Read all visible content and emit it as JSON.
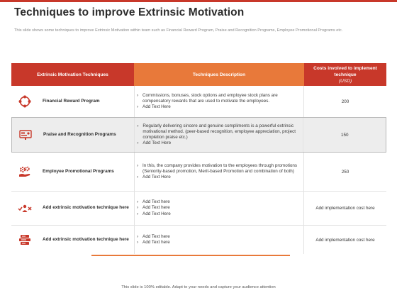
{
  "slide": {
    "title": "Techniques to improve Extrinsic Motivation",
    "subtitle": "This slide shows some techniques to improve Extrinsic Motivation within team such as Financial Reward Program, Praise and Recognition Programs, Employee Promotional Programs etc.",
    "footer": "This slide is 100% editable. Adapt to your needs and capture your audience attention"
  },
  "table": {
    "headers": {
      "technique": "Extrinsic Motivation Techniques",
      "description": "Techniques Description",
      "cost": "Costs involved to implement technique",
      "cost_unit": "(USD)"
    },
    "rows": [
      {
        "icon": "cycle-arrows-icon",
        "name": "Financial Reward Program",
        "bullets": [
          "Commissions, bonuses, stock options and employee stock plans are compensatory rewards that are used to motivate the employees.",
          "Add Text Here"
        ],
        "cost": "200"
      },
      {
        "icon": "presentation-board-icon",
        "name": "Praise and Recognition Programs",
        "bullets": [
          "Regularly delivering sincere and genuine compliments is a powerful extrinsic motivational method. (peer-based recognition, employee appreciation, project completion praise etc.)",
          "Add Text Here"
        ],
        "cost": "150"
      },
      {
        "icon": "gears-hand-icon",
        "name": "Employee Promotional Programs",
        "bullets": [
          "In this, the company provides motivation to the employees through promotions (Seniority-based promotion, Merit-based Promotion and combination of both)",
          "Add Text Here"
        ],
        "cost": "250"
      },
      {
        "icon": "check-person-cross-icon",
        "name": "Add extrinsic motivation technique here",
        "bullets": [
          "Add Text here",
          "Add Text here",
          "Add Text Here"
        ],
        "cost": "Add implementation cost here"
      },
      {
        "icon": "server-stack-icon",
        "name": "Add extrinsic motivation technique here",
        "bullets": [
          "Add Text here",
          "Add Text here"
        ],
        "cost": "Add implementation cost here"
      }
    ]
  },
  "colors": {
    "accent_red": "#c8382a",
    "accent_orange": "#e8793a"
  }
}
